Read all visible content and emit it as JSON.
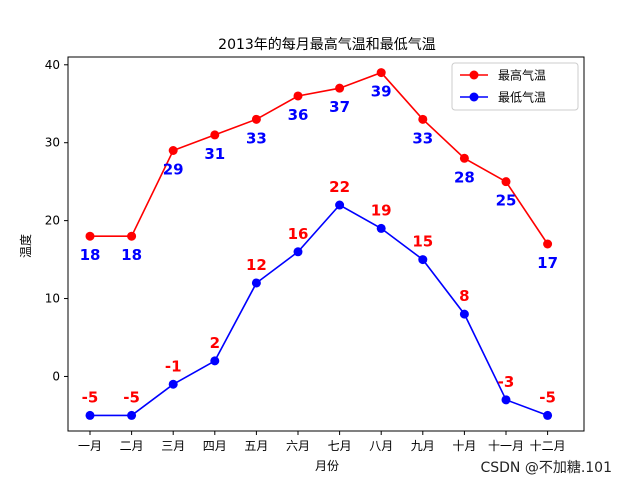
{
  "chart_data": {
    "type": "line",
    "title": "2013年的每月最高气温和最低气温",
    "xlabel": "月份",
    "ylabel": "温度",
    "categories": [
      "一月",
      "二月",
      "三月",
      "四月",
      "五月",
      "六月",
      "七月",
      "八月",
      "九月",
      "十月",
      "十一月",
      "十二月"
    ],
    "ylim": [
      -7,
      41
    ],
    "yticks": [
      0,
      10,
      20,
      30,
      40
    ],
    "grid": false,
    "legend_position": "top-right",
    "series": [
      {
        "name": "最高气温",
        "color": "#ff0000",
        "label_color": "#0000ff",
        "label_position": "below",
        "values": [
          18,
          18,
          29,
          31,
          33,
          36,
          37,
          39,
          33,
          28,
          25,
          17
        ]
      },
      {
        "name": "最低气温",
        "color": "#0000ff",
        "label_color": "#ff0000",
        "label_position": "above",
        "values": [
          -5,
          -5,
          -1,
          2,
          12,
          16,
          22,
          19,
          15,
          8,
          -3,
          -5
        ]
      }
    ]
  },
  "watermark": "CSDN @不加糖.101"
}
